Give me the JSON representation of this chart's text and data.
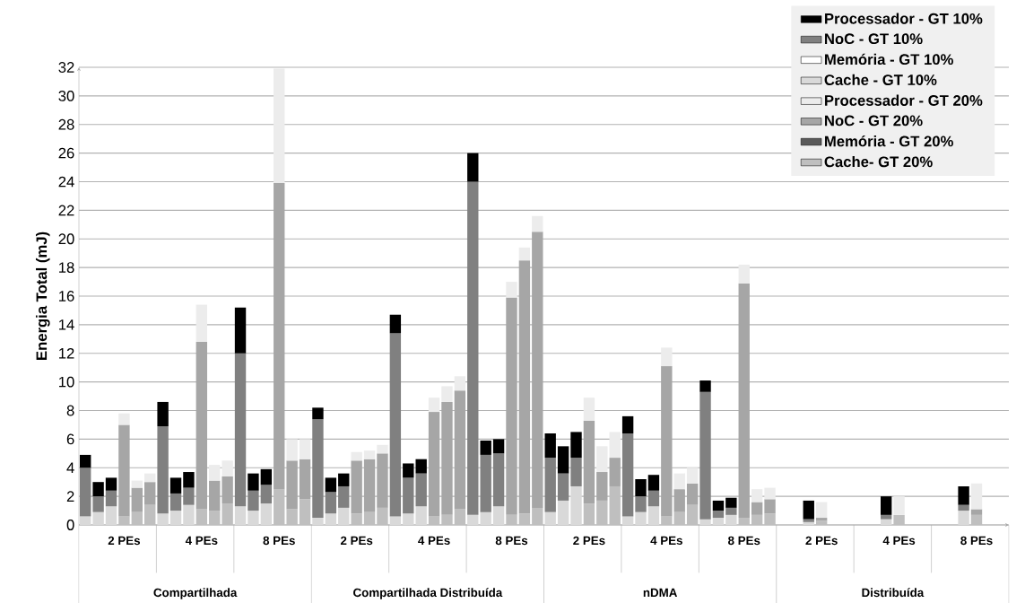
{
  "chart_data": {
    "type": "bar",
    "stacked": true,
    "ylabel": "Energia Total (mJ)",
    "categories": [
      null,
      null,
      null,
      "2 PEs",
      null,
      null,
      null,
      null,
      null,
      "4 PEs",
      null,
      null,
      null,
      null,
      null,
      "8 PEs",
      null,
      null,
      null,
      null,
      null,
      "2 PEs",
      null,
      null,
      null,
      null,
      null,
      "4 PEs",
      null,
      null,
      null,
      null,
      null,
      "8 PEs",
      null,
      null,
      null,
      null,
      null,
      "2 PEs",
      null,
      null,
      null,
      null,
      null,
      "4 PEs",
      null,
      null,
      null,
      null,
      null,
      "8 PEs",
      null,
      null,
      null,
      null,
      null,
      "2 PEs",
      null,
      null,
      null,
      null,
      null,
      "4 PEs",
      null,
      null,
      null,
      null,
      null,
      "8 PEs",
      null,
      null
    ],
    "annotations": [
      "Compartilhada",
      "Compartilhada Distribuída",
      "nDMA",
      "Distribuída"
    ],
    "ylim": [
      0,
      32
    ],
    "yticks": [
      0,
      2,
      4,
      6,
      8,
      10,
      12,
      14,
      16,
      18,
      20,
      22,
      24,
      26,
      28,
      30,
      32
    ],
    "grid": "y",
    "legend": "top right",
    "series": [
      {
        "name": "Cache - GT 10%",
        "color": "#d9d9d9",
        "values": [
          0.6,
          0.9,
          1.3,
          null,
          null,
          null,
          0.8,
          1.0,
          1.4,
          null,
          null,
          null,
          1.3,
          1.0,
          1.5,
          null,
          null,
          null,
          0.5,
          0.8,
          1.2,
          null,
          null,
          null,
          0.6,
          0.8,
          1.3,
          null,
          null,
          null,
          0.7,
          0.9,
          1.3,
          null,
          null,
          null,
          0.9,
          1.7,
          2.7,
          null,
          null,
          null,
          0.6,
          0.9,
          1.3,
          null,
          null,
          null,
          0.4,
          0.5,
          0.7,
          null,
          null,
          null,
          null,
          null,
          0.2,
          null,
          null,
          null,
          null,
          null,
          0.4,
          null,
          null,
          null,
          null,
          null,
          1.0,
          null,
          null,
          null
        ]
      },
      {
        "name": "Memória - GT 10%",
        "color": "#ffffff",
        "values": [
          0,
          0,
          0,
          null,
          null,
          null,
          0,
          0,
          0,
          null,
          null,
          null,
          0,
          0,
          0,
          null,
          null,
          null,
          0,
          0,
          0,
          null,
          null,
          null,
          0,
          0,
          0,
          null,
          null,
          null,
          0,
          0,
          0,
          null,
          null,
          null,
          0,
          0,
          0,
          null,
          null,
          null,
          0,
          0,
          0,
          null,
          null,
          null,
          0,
          0,
          0,
          null,
          null,
          null,
          null,
          null,
          0,
          null,
          null,
          null,
          null,
          null,
          0,
          null,
          null,
          null,
          null,
          null,
          0,
          null,
          null,
          null
        ]
      },
      {
        "name": "NoC - GT 10%",
        "color": "#808080",
        "values": [
          3.4,
          1.1,
          1.1,
          null,
          null,
          null,
          6.1,
          1.2,
          1.2,
          null,
          null,
          null,
          10.7,
          1.4,
          1.3,
          null,
          null,
          null,
          6.9,
          1.5,
          1.5,
          null,
          null,
          null,
          12.8,
          2.5,
          2.3,
          null,
          null,
          null,
          23.3,
          4.0,
          3.7,
          null,
          null,
          null,
          3.8,
          1.9,
          2.0,
          null,
          null,
          null,
          5.8,
          1.1,
          1.1,
          null,
          null,
          null,
          8.9,
          0.5,
          0.5,
          null,
          null,
          null,
          null,
          null,
          0.2,
          null,
          null,
          null,
          null,
          null,
          0.3,
          null,
          null,
          null,
          null,
          null,
          0.4,
          null,
          null,
          null
        ]
      },
      {
        "name": "Processador - GT 10%",
        "color": "#000000",
        "values": [
          0.9,
          1.0,
          0.9,
          null,
          null,
          null,
          1.7,
          1.1,
          1.1,
          null,
          null,
          null,
          3.2,
          1.2,
          1.1,
          null,
          null,
          null,
          0.8,
          1.0,
          0.9,
          null,
          null,
          null,
          1.3,
          1.0,
          1.0,
          null,
          null,
          null,
          2.0,
          1.0,
          1.0,
          null,
          null,
          null,
          1.7,
          1.9,
          1.8,
          null,
          null,
          null,
          1.2,
          1.2,
          1.1,
          null,
          null,
          null,
          0.8,
          0.7,
          0.7,
          null,
          null,
          null,
          null,
          null,
          1.3,
          null,
          null,
          null,
          null,
          null,
          1.3,
          null,
          null,
          null,
          null,
          null,
          1.3,
          null,
          null,
          null
        ]
      },
      {
        "name": "Cache- GT 20%",
        "color": "#bfbfbf",
        "values": [
          null,
          null,
          null,
          0.6,
          0.9,
          1.4,
          null,
          null,
          null,
          1.1,
          1.0,
          1.5,
          null,
          null,
          null,
          2.5,
          1.1,
          1.8,
          null,
          null,
          null,
          0.8,
          0.9,
          1.2,
          null,
          null,
          null,
          0.6,
          0.7,
          1.1,
          null,
          null,
          null,
          0.7,
          0.8,
          1.2,
          null,
          null,
          null,
          1.5,
          1.7,
          2.7,
          null,
          null,
          null,
          0.6,
          0.9,
          1.4,
          null,
          null,
          null,
          0.5,
          0.7,
          0.8,
          null,
          null,
          null,
          0.3,
          null,
          null,
          null,
          null,
          null,
          0.7,
          null,
          null,
          null,
          null,
          null,
          0.7,
          null,
          null
        ]
      },
      {
        "name": "Memória - GT 20%",
        "color": "#595959",
        "values": [
          null,
          null,
          null,
          0,
          0,
          0,
          null,
          null,
          null,
          0,
          0,
          0,
          null,
          null,
          null,
          0,
          0,
          0,
          null,
          null,
          null,
          0,
          0,
          0,
          null,
          null,
          null,
          0,
          0,
          0,
          null,
          null,
          null,
          0,
          0,
          0,
          null,
          null,
          null,
          0,
          0,
          0,
          null,
          null,
          null,
          0,
          0,
          0,
          null,
          null,
          null,
          0,
          0,
          0,
          null,
          null,
          null,
          0,
          null,
          null,
          null,
          null,
          null,
          0,
          null,
          null,
          null,
          null,
          null,
          0,
          null,
          null
        ]
      },
      {
        "name": "NoC - GT 20%",
        "color": "#a6a6a6",
        "values": [
          null,
          null,
          null,
          6.4,
          1.7,
          1.6,
          null,
          null,
          null,
          11.7,
          2.1,
          1.9,
          null,
          null,
          null,
          21.4,
          3.4,
          2.8,
          null,
          null,
          null,
          3.7,
          3.7,
          3.8,
          null,
          null,
          null,
          7.3,
          7.9,
          8.3,
          null,
          null,
          null,
          15.2,
          17.7,
          19.3,
          null,
          null,
          null,
          5.8,
          2.0,
          2.0,
          null,
          null,
          null,
          10.5,
          1.6,
          1.5,
          null,
          null,
          null,
          16.4,
          0.9,
          1.0,
          null,
          null,
          null,
          0.2,
          null,
          null,
          null,
          null,
          null,
          null,
          null,
          null,
          null,
          null,
          null,
          0.4,
          null,
          null
        ]
      },
      {
        "name": "Processador - GT 20%",
        "color": "#ececec",
        "values": [
          null,
          null,
          null,
          0.8,
          0.5,
          0.6,
          null,
          null,
          null,
          2.6,
          1.1,
          1.1,
          null,
          null,
          null,
          8.0,
          1.5,
          1.4,
          null,
          null,
          null,
          0.6,
          0.6,
          0.6,
          null,
          null,
          null,
          1.0,
          1.1,
          1.0,
          null,
          null,
          null,
          1.1,
          0.9,
          1.1,
          null,
          null,
          null,
          1.6,
          1.8,
          1.8,
          null,
          null,
          null,
          1.3,
          1.1,
          1.1,
          null,
          null,
          null,
          1.3,
          0.9,
          0.8,
          null,
          null,
          null,
          1.1,
          null,
          null,
          null,
          null,
          null,
          1.3,
          null,
          null,
          null,
          null,
          null,
          1.8,
          null,
          null
        ]
      }
    ]
  }
}
